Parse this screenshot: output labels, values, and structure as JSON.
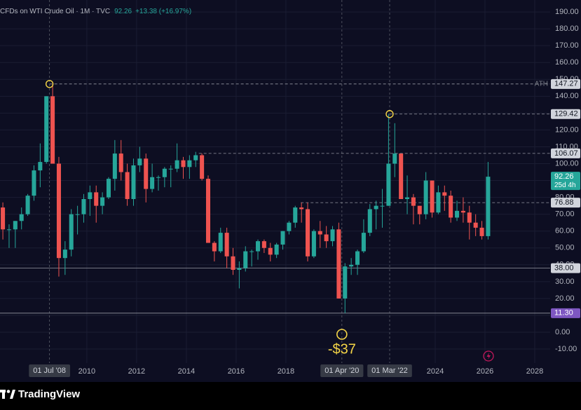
{
  "chart_data": {
    "type": "candlestick",
    "title": "CFDs on WTI Crude Oil · 1M · TVC",
    "change": "+13.38 (+16.97%)",
    "brand": "TradingView",
    "up_color": "#26a69a",
    "down_color": "#ef5350",
    "grid": true,
    "xlim": [
      2006.51,
      2028.62
    ],
    "ylim": [
      -18.3,
      197.1
    ],
    "xticks": [
      2010,
      2012,
      2014,
      2016,
      2018,
      2024,
      2026,
      2028
    ],
    "yticks": [
      {
        "value": -10,
        "label": "-10.00"
      },
      {
        "value": 0,
        "label": "0.00"
      },
      {
        "value": 10,
        "label": "10.00"
      },
      {
        "value": 20,
        "label": "20.00"
      },
      {
        "value": 30,
        "label": "30.00"
      },
      {
        "value": 40,
        "label": "40.00"
      },
      {
        "value": 50,
        "label": "50.00"
      },
      {
        "value": 60,
        "label": "60.00"
      },
      {
        "value": 70,
        "label": "70.00"
      },
      {
        "value": 80,
        "label": "80.00"
      },
      {
        "value": 90,
        "label": "90.00"
      },
      {
        "value": 100,
        "label": "100.00"
      },
      {
        "value": 110,
        "label": "110.00"
      },
      {
        "value": 120,
        "label": "120.00"
      },
      {
        "value": 130,
        "label": "130.00"
      },
      {
        "value": 140,
        "label": "140.00"
      },
      {
        "value": 150,
        "label": "150.00"
      },
      {
        "value": 160,
        "label": "160.00"
      },
      {
        "value": 170,
        "label": "170.00"
      },
      {
        "value": 180,
        "label": "180.00"
      },
      {
        "value": 190,
        "label": "190.00"
      }
    ],
    "x": [
      2006.625,
      2006.875,
      2007.125,
      2007.375,
      2007.625,
      2007.875,
      2008.125,
      2008.375,
      2008.625,
      2008.875,
      2009.125,
      2009.375,
      2009.625,
      2009.875,
      2010.125,
      2010.375,
      2010.625,
      2010.875,
      2011.125,
      2011.375,
      2011.625,
      2011.875,
      2012.125,
      2012.375,
      2012.625,
      2012.875,
      2013.125,
      2013.375,
      2013.625,
      2013.875,
      2014.125,
      2014.375,
      2014.625,
      2014.875,
      2015.125,
      2015.375,
      2015.625,
      2015.875,
      2016.125,
      2016.375,
      2016.625,
      2016.875,
      2017.125,
      2017.375,
      2017.625,
      2017.875,
      2018.125,
      2018.375,
      2018.625,
      2018.875,
      2019.125,
      2019.375,
      2019.625,
      2019.875,
      2020.125,
      2020.375,
      2020.625,
      2020.875,
      2021.125,
      2021.375,
      2021.625,
      2021.875,
      2022.125,
      2022.375,
      2022.625,
      2022.875,
      2023.125,
      2023.375,
      2023.625,
      2023.875,
      2024.125,
      2024.375,
      2024.625,
      2024.875,
      2025.125,
      2025.375,
      2025.625,
      2025.875,
      2026.125
    ],
    "open": [
      74,
      61,
      61,
      66,
      70,
      81,
      96,
      101,
      140,
      100,
      44,
      49,
      70,
      70,
      79,
      83,
      75,
      80,
      91,
      106,
      95,
      79,
      99,
      103,
      85,
      92,
      92,
      97,
      97,
      102,
      98,
      102,
      105,
      91,
      53,
      48,
      59,
      45,
      37,
      38,
      48,
      48,
      54,
      50,
      46,
      52,
      60,
      65,
      74,
      73,
      45,
      60,
      58,
      54,
      61,
      20,
      39,
      40,
      48,
      59,
      73,
      75,
      75,
      100,
      106,
      79,
      80,
      75,
      70,
      90,
      71,
      83,
      81,
      68,
      72,
      71,
      65,
      62,
      57
    ],
    "high": [
      77,
      64,
      66,
      74,
      82,
      99,
      112,
      140,
      147.27,
      104,
      54,
      73,
      75,
      82,
      87,
      87,
      83,
      92,
      114,
      114,
      100,
      103,
      110,
      106,
      100,
      93,
      98,
      99,
      112,
      104,
      105,
      107,
      106.07,
      93,
      54,
      62,
      62,
      50,
      42,
      51,
      49,
      55,
      55,
      53,
      53,
      60,
      66,
      75,
      76.88,
      76.88,
      61,
      66,
      63,
      63,
      65,
      41,
      44,
      49,
      67,
      76,
      78,
      85,
      129.42,
      124,
      106,
      93,
      82,
      75,
      95,
      90,
      87,
      87,
      84,
      78,
      80,
      75,
      70,
      66,
      101
    ],
    "low": [
      55,
      50,
      50,
      61,
      69,
      78,
      86,
      100,
      100,
      33,
      34,
      45,
      58,
      65,
      69,
      65,
      70,
      79,
      84,
      90,
      75,
      75,
      95,
      77,
      83,
      84,
      86,
      86,
      95,
      91,
      91,
      98,
      90,
      53,
      42,
      47,
      38,
      34,
      26,
      36,
      39,
      43,
      47,
      42,
      44,
      49,
      58,
      62,
      65,
      42,
      44,
      50,
      50,
      51,
      20,
      11.3,
      34,
      34,
      47,
      57,
      61,
      62,
      75,
      92,
      79,
      70,
      64,
      64,
      67,
      68,
      70,
      72,
      65,
      66,
      65,
      55,
      57,
      55,
      55
    ],
    "close": [
      61,
      61,
      66,
      70,
      81,
      96,
      101,
      140,
      100,
      44,
      49,
      70,
      70,
      79,
      83,
      75,
      80,
      91,
      106,
      95,
      79,
      99,
      103,
      85,
      92,
      92,
      97,
      97,
      102,
      98,
      102,
      105,
      91,
      53,
      48,
      59,
      45,
      37,
      38,
      48,
      48,
      54,
      50,
      46,
      52,
      60,
      65,
      74,
      73,
      45,
      60,
      58,
      54,
      61,
      20,
      39,
      40,
      48,
      59,
      73,
      75,
      75,
      100,
      106,
      79,
      80,
      75,
      70,
      90,
      71,
      83,
      81,
      68,
      72,
      71,
      65,
      62,
      57,
      92.26
    ],
    "levels": [
      {
        "value": 147.27,
        "x": 2008.5,
        "tag": "ATH",
        "line": "dashed",
        "color": "#d1d4dc"
      },
      {
        "value": 129.42,
        "x": 2022.17,
        "line": "dashed",
        "color": "#d1d4dc"
      },
      {
        "value": 106.07,
        "x": 2014.5,
        "line": "dashed",
        "color": "#d1d4dc"
      },
      {
        "value": 76.88,
        "x": 2018.6,
        "line": "dashed",
        "color": "#d1d4dc"
      },
      {
        "value": 38,
        "label": "38.00",
        "line": "solid",
        "color": "#d1d4dc"
      },
      {
        "value": 11.3,
        "label": "11.30",
        "line": "solid",
        "color": "#7e57c2"
      }
    ],
    "last_price": {
      "value": 92.26,
      "countdown": "25d 4h",
      "color": "#26a69a"
    },
    "date_markers": [
      {
        "x": 2008.5,
        "label": "01 Jul '08",
        "price": 147.27
      },
      {
        "x": 2020.25,
        "label": "01 Apr '20",
        "note": "-$37"
      },
      {
        "x": 2022.17,
        "label": "01 Mar '22",
        "price": 129.42
      }
    ],
    "highlight_color": "#f5d547"
  }
}
